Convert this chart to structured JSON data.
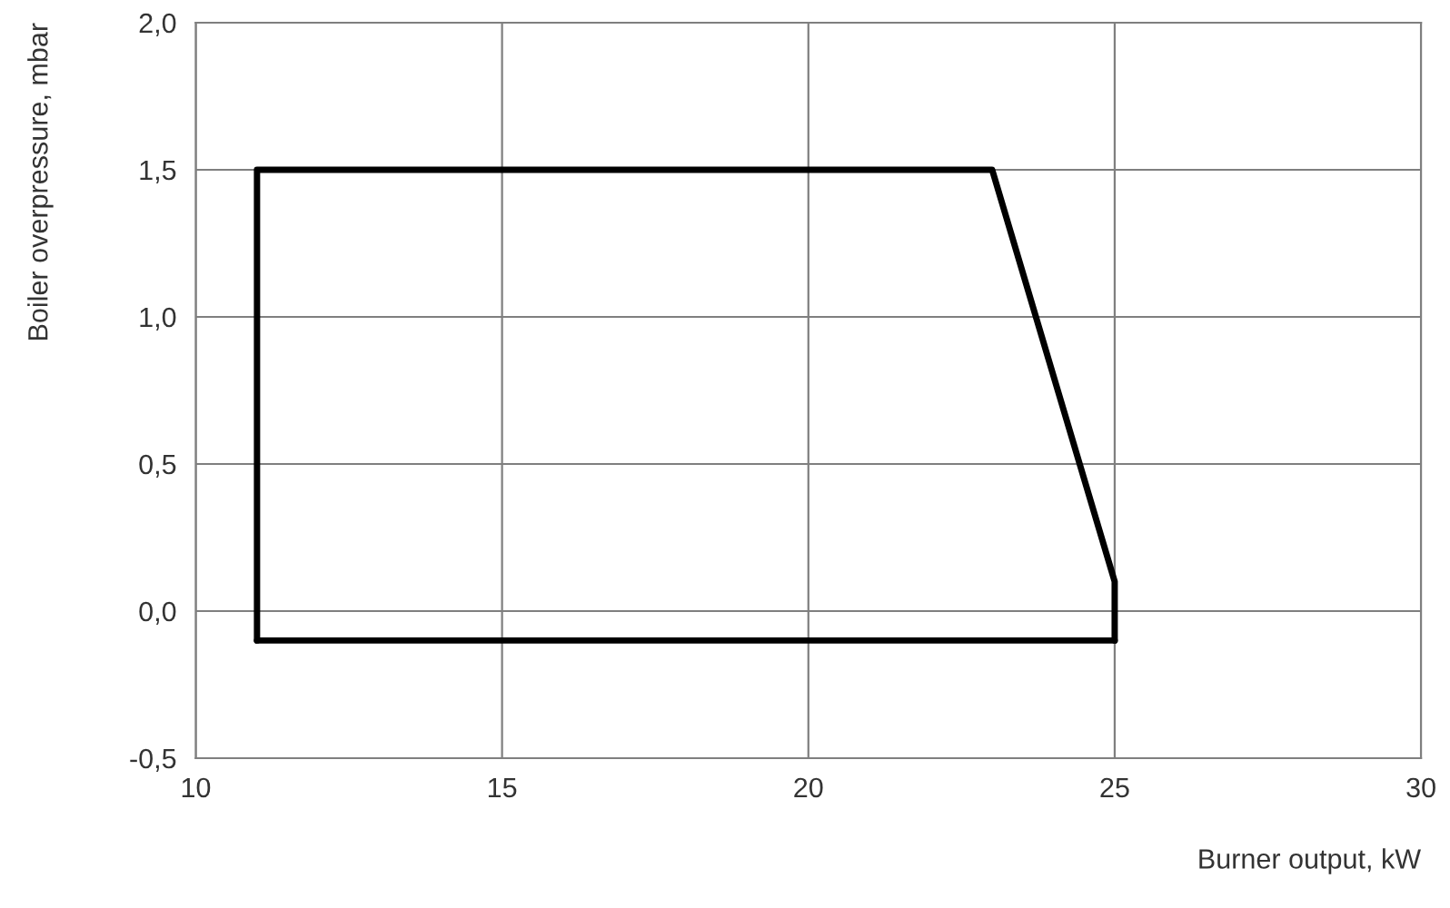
{
  "chart_data": {
    "type": "line",
    "xlabel": "Burner output, kW",
    "ylabel": "Boiler overpressure, mbar",
    "series": [
      {
        "color": "#000000",
        "x": [
          11,
          11,
          23,
          25,
          25
        ],
        "values": [
          -0.1,
          1.5,
          1.5,
          0.1,
          -0.1
        ]
      },
      {
        "color": "#000000",
        "x": [
          11,
          25
        ],
        "values": [
          -0.1,
          -0.1
        ]
      }
    ],
    "xlim": [
      10,
      30
    ],
    "xticks": [
      10,
      15,
      20,
      25,
      30
    ],
    "ylim": [
      -0.5,
      2.0
    ],
    "yticks": [
      {
        "value": -0.5,
        "label": "-0,5"
      },
      {
        "value": 0.0,
        "label": "0,0"
      },
      {
        "value": 0.5,
        "label": "0,5"
      },
      {
        "value": 1.0,
        "label": "1,0"
      },
      {
        "value": 1.5,
        "label": "1,5"
      },
      {
        "value": 2.0,
        "label": "2,0"
      }
    ],
    "grid": true,
    "marker": "none",
    "line_style": "solid",
    "legend": false
  }
}
